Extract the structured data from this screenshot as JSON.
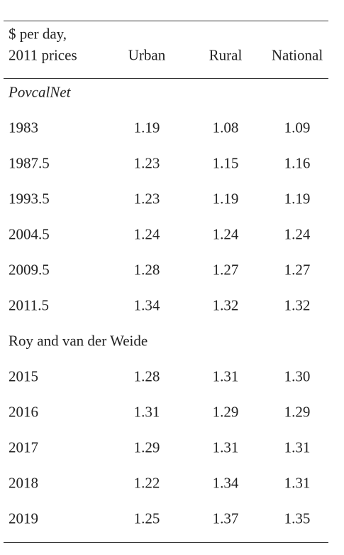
{
  "table": {
    "corner": [
      "$ per day,",
      "2011 prices"
    ],
    "columns": [
      "Urban",
      "Rural",
      "National"
    ],
    "sections": [
      {
        "title": "PovcalNet",
        "rows": [
          [
            "1983",
            "1.19",
            "1.08",
            "1.09"
          ],
          [
            "1987.5",
            "1.23",
            "1.15",
            "1.16"
          ],
          [
            "1993.5",
            "1.23",
            "1.19",
            "1.19"
          ],
          [
            "2004.5",
            "1.24",
            "1.24",
            "1.24"
          ],
          [
            "2009.5",
            "1.28",
            "1.27",
            "1.27"
          ],
          [
            "2011.5",
            "1.34",
            "1.32",
            "1.32"
          ]
        ]
      },
      {
        "title": "Roy and van der Weide",
        "rows": [
          [
            "2015",
            "1.28",
            "1.31",
            "1.30"
          ],
          [
            "2016",
            "1.31",
            "1.29",
            "1.29"
          ],
          [
            "2017",
            "1.29",
            "1.31",
            "1.31"
          ],
          [
            "2018",
            "1.22",
            "1.34",
            "1.31"
          ],
          [
            "2019",
            "1.25",
            "1.37",
            "1.35"
          ]
        ]
      }
    ]
  }
}
